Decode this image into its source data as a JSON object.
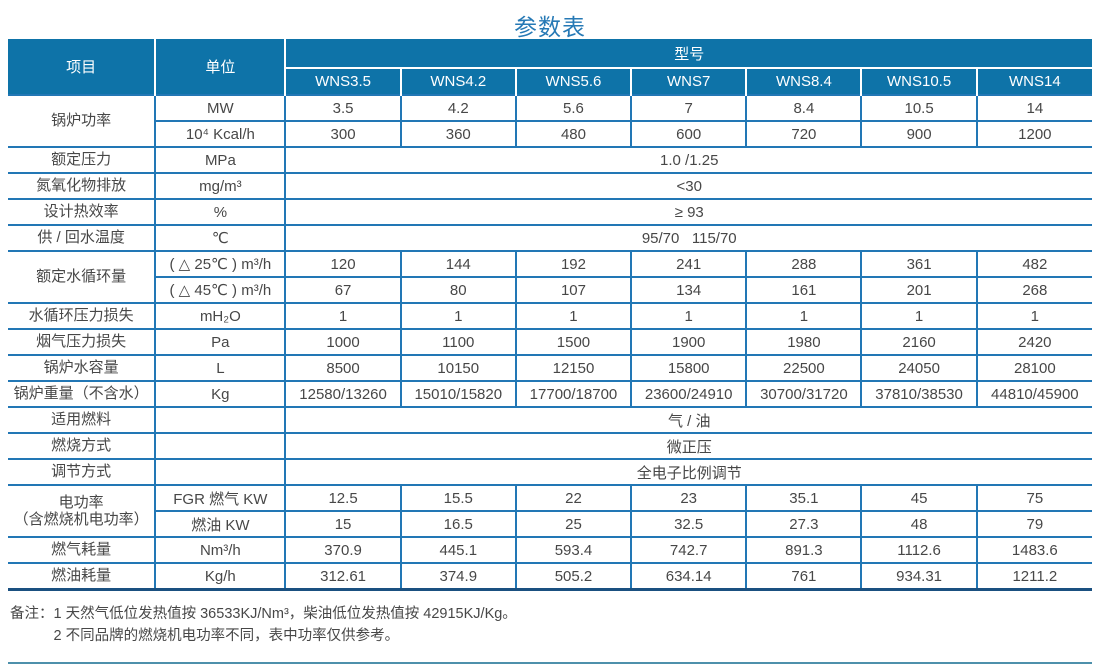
{
  "page": {
    "title": "参数表"
  },
  "colors": {
    "header_bg": "#0e73a8",
    "table_border": "#2277b5",
    "table_bottom_border": "#1a5080",
    "title_text": "#2679b5",
    "body_text": "#474747",
    "bottom_rule": "#4d90ab"
  },
  "table": {
    "header": {
      "item": "项目",
      "unit": "单位",
      "model_group": "型号",
      "models": [
        "WNS3.5",
        "WNS4.2",
        "WNS5.6",
        "WNS7",
        "WNS8.4",
        "WNS10.5",
        "WNS14"
      ]
    },
    "rows": [
      {
        "label": "锅炉功率",
        "label_rowspan": 2,
        "unit": "MW",
        "values": [
          "3.5",
          "4.2",
          "5.6",
          "7",
          "8.4",
          "10.5",
          "14"
        ]
      },
      {
        "unit": "10⁴ Kcal/h",
        "values": [
          "300",
          "360",
          "480",
          "600",
          "720",
          "900",
          "1200"
        ]
      },
      {
        "label": "额定压力",
        "unit": "MPa",
        "merged": "1.0 /1.25"
      },
      {
        "label": "氮氧化物排放",
        "unit": "mg/m³",
        "merged": "<30"
      },
      {
        "label": "设计热效率",
        "unit": "%",
        "merged": "≥ 93"
      },
      {
        "label": "供 / 回水温度",
        "unit": "℃",
        "merged": "95/70   115/70"
      },
      {
        "label": "额定水循环量",
        "label_rowspan": 2,
        "unit": "( △ 25℃ ) m³/h",
        "values": [
          "120",
          "144",
          "192",
          "241",
          "288",
          "361",
          "482"
        ]
      },
      {
        "unit": "( △ 45℃ ) m³/h",
        "values": [
          "67",
          "80",
          "107",
          "134",
          "161",
          "201",
          "268"
        ]
      },
      {
        "label": "水循环压力损失",
        "unit": "mH₂O",
        "values": [
          "1",
          "1",
          "1",
          "1",
          "1",
          "1",
          "1"
        ]
      },
      {
        "label": "烟气压力损失",
        "unit": "Pa",
        "values": [
          "1000",
          "1100",
          "1500",
          "1900",
          "1980",
          "2160",
          "2420"
        ]
      },
      {
        "label": "锅炉水容量",
        "unit": "L",
        "values": [
          "8500",
          "10150",
          "12150",
          "15800",
          "22500",
          "24050",
          "28100"
        ]
      },
      {
        "label": "锅炉重量（不含水）",
        "unit": "Kg",
        "values": [
          "12580/13260",
          "15010/15820",
          "17700/18700",
          "23600/24910",
          "30700/31720",
          "37810/38530",
          "44810/45900"
        ]
      },
      {
        "label": "适用燃料",
        "unit": "",
        "merged": "气 / 油"
      },
      {
        "label": "燃烧方式",
        "unit": "",
        "merged": "微正压"
      },
      {
        "label": "调节方式",
        "unit": "",
        "merged": "全电子比例调节"
      },
      {
        "label": "电功率\n（含燃烧机电功率）",
        "label_rowspan": 2,
        "unit": "FGR 燃气 KW",
        "values": [
          "12.5",
          "15.5",
          "22",
          "23",
          "35.1",
          "45",
          "75"
        ]
      },
      {
        "unit": "燃油 KW",
        "values": [
          "15",
          "16.5",
          "25",
          "32.5",
          "27.3",
          "48",
          "79"
        ]
      },
      {
        "label": "燃气耗量",
        "unit": "Nm³/h",
        "values": [
          "370.9",
          "445.1",
          "593.4",
          "742.7",
          "891.3",
          "1112.6",
          "1483.6"
        ]
      },
      {
        "label": "燃油耗量",
        "unit": "Kg/h",
        "values": [
          "312.61",
          "374.9",
          "505.2",
          "634.14",
          "761",
          "934.31",
          "1211.2"
        ]
      }
    ]
  },
  "notes": {
    "label": "备注：",
    "items": [
      "1  天然气低位发热值按 36533KJ/Nm³，柴油低位发热值按 42915KJ/Kg。",
      "2  不同品牌的燃烧机电功率不同，表中功率仅供参考。"
    ]
  }
}
